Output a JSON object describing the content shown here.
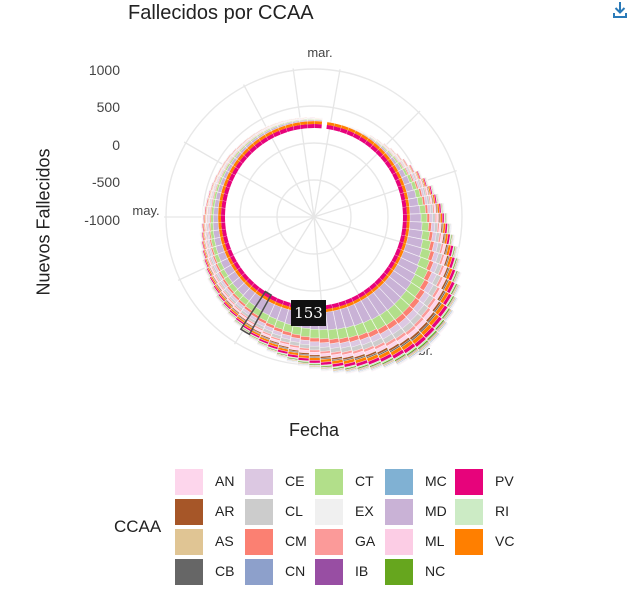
{
  "chart_data": {
    "type": "bar",
    "coord": "polar",
    "title": "Fallecidos por CCAA",
    "xlabel": "Fecha",
    "ylabel": "Nuevos Fallecidos",
    "y_ticks": [
      "1000",
      "500",
      "0",
      "-500",
      "-1000"
    ],
    "month_labels": [
      "mar.",
      "abr.",
      "may."
    ],
    "legend_title": "CCAA",
    "legend_position": "bottom",
    "series": [
      {
        "name": "AN",
        "color": "#fdd6ec"
      },
      {
        "name": "AR",
        "color": "#a65628"
      },
      {
        "name": "AS",
        "color": "#e0c594"
      },
      {
        "name": "CB",
        "color": "#666666"
      },
      {
        "name": "CE",
        "color": "#dcc8e2"
      },
      {
        "name": "CL",
        "color": "#cccccc"
      },
      {
        "name": "CM",
        "color": "#fb8072"
      },
      {
        "name": "CN",
        "color": "#8da0cb"
      },
      {
        "name": "CT",
        "color": "#b2df8a"
      },
      {
        "name": "EX",
        "color": "#f0f0f0"
      },
      {
        "name": "GA",
        "color": "#fb9a99"
      },
      {
        "name": "IB",
        "color": "#984ea3"
      },
      {
        "name": "MC",
        "color": "#80b1d3"
      },
      {
        "name": "MD",
        "color": "#c9b2d6"
      },
      {
        "name": "ML",
        "color": "#fccde5"
      },
      {
        "name": "NC",
        "color": "#66a61e"
      },
      {
        "name": "PV",
        "color": "#e7037b"
      },
      {
        "name": "RI",
        "color": "#ccebc5"
      },
      {
        "name": "VC",
        "color": "#ff7f00"
      }
    ],
    "daily_totals_approx": [
      10,
      5,
      15,
      20,
      25,
      35,
      50,
      60,
      80,
      100,
      120,
      150,
      190,
      240,
      290,
      340,
      380,
      430,
      470,
      520,
      570,
      640,
      700,
      760,
      820,
      860,
      900,
      930,
      950,
      960,
      940,
      920,
      880,
      850,
      820,
      790,
      760,
      720,
      690,
      660,
      630,
      600,
      570,
      540,
      510,
      480,
      450,
      420,
      400,
      380,
      360,
      340,
      320,
      300,
      280,
      260,
      240,
      220,
      200,
      185,
      170,
      160,
      150,
      140,
      130,
      125,
      120,
      110,
      100,
      95,
      90,
      85,
      80,
      75,
      70,
      65,
      60,
      55,
      50,
      45
    ],
    "highlighted_value": "153"
  },
  "ui": {
    "download_icon": "download-icon"
  }
}
